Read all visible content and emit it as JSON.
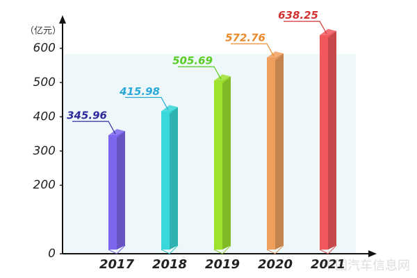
{
  "chart_data": {
    "type": "bar3d",
    "unit": "（亿元）",
    "categories": [
      "2017",
      "2018",
      "2019",
      "2020",
      "2021"
    ],
    "values": [
      345.96,
      415.98,
      505.69,
      572.76,
      638.25
    ],
    "colors": [
      "#7d66ee",
      "#3ad8d8",
      "#9ee22e",
      "#f0a05e",
      "#f0585c"
    ],
    "label_colors": [
      "#2b2b9c",
      "#2aa8d8",
      "#58cc22",
      "#e8892a",
      "#d43030"
    ],
    "ylim": [
      0,
      660
    ],
    "yticks": [
      0,
      200,
      300,
      400,
      500,
      600
    ],
    "watermark": "中国汽车信息网"
  }
}
